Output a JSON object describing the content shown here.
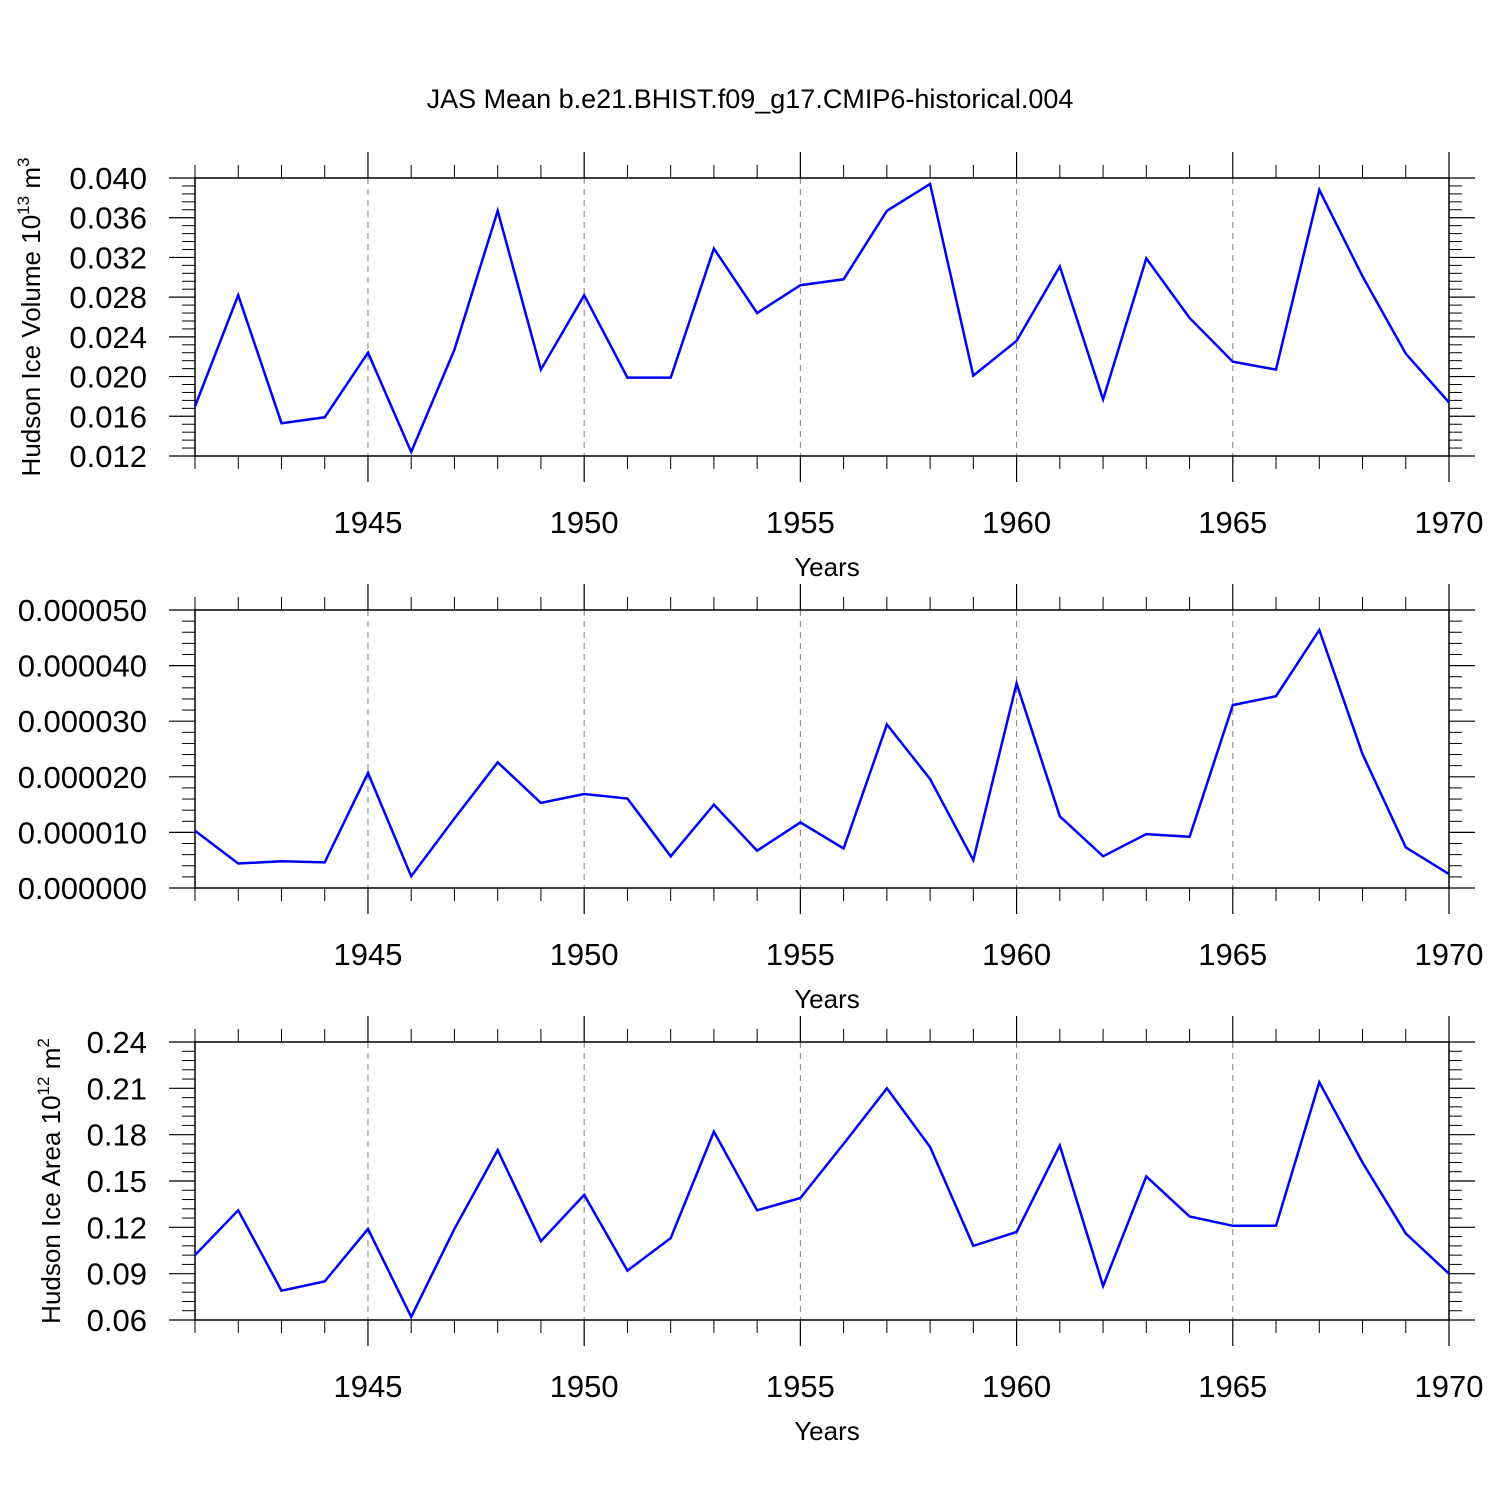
{
  "title": "JAS Mean b.e21.BHIST.f09_g17.CMIP6-historical.004",
  "colors": {
    "line": "#0000ff",
    "axis": "#000000",
    "grid": "#808080",
    "background": "#ffffff"
  },
  "chart_data": [
    {
      "type": "line",
      "name": "ice-volume",
      "ylabel": {
        "main": "Hudson Ice Volume 10",
        "sup": "13",
        "mid": " m",
        "sup2": "3"
      },
      "xlabel": "Years",
      "xlim": [
        1941,
        1970
      ],
      "ylim": [
        0.012,
        0.04
      ],
      "xticks": [
        1945,
        1950,
        1955,
        1960,
        1965,
        1970
      ],
      "xtick_labels": [
        "1945",
        "1950",
        "1955",
        "1960",
        "1965",
        "1970"
      ],
      "yticks": [
        0.012,
        0.016,
        0.02,
        0.024,
        0.028,
        0.032,
        0.036,
        0.04
      ],
      "ytick_labels": [
        "0.012",
        "0.016",
        "0.020",
        "0.024",
        "0.028",
        "0.032",
        "0.036",
        "0.040"
      ],
      "grid": "x-dashed",
      "x": [
        1941,
        1942,
        1943,
        1944,
        1945,
        1946,
        1947,
        1948,
        1949,
        1950,
        1951,
        1952,
        1953,
        1954,
        1955,
        1956,
        1957,
        1958,
        1959,
        1960,
        1961,
        1962,
        1963,
        1964,
        1965,
        1966,
        1967,
        1968,
        1969,
        1970
      ],
      "values": [
        0.017,
        0.0282,
        0.0153,
        0.0159,
        0.0224,
        0.0124,
        0.0227,
        0.0367,
        0.0207,
        0.0282,
        0.0199,
        0.0199,
        0.0329,
        0.0264,
        0.0292,
        0.0298,
        0.0367,
        0.0394,
        0.0201,
        0.0236,
        0.0311,
        0.0177,
        0.0319,
        0.0259,
        0.0215,
        0.0207,
        0.0388,
        0.0301,
        0.0223,
        0.0174
      ]
    },
    {
      "type": "line",
      "name": "second-panel",
      "ylabel": null,
      "xlabel": "Years",
      "xlim": [
        1941,
        1970
      ],
      "ylim": [
        0.0,
        5e-05
      ],
      "xticks": [
        1945,
        1950,
        1955,
        1960,
        1965,
        1970
      ],
      "xtick_labels": [
        "1945",
        "1950",
        "1955",
        "1960",
        "1965",
        "1970"
      ],
      "yticks": [
        0.0,
        1e-05,
        2e-05,
        3e-05,
        4e-05,
        5e-05
      ],
      "ytick_labels": [
        "0.000000",
        "0.000010",
        "0.000020",
        "0.000030",
        "0.000040",
        "0.000050"
      ],
      "grid": "x-dashed",
      "x": [
        1941,
        1942,
        1943,
        1944,
        1945,
        1946,
        1947,
        1948,
        1949,
        1950,
        1951,
        1952,
        1953,
        1954,
        1955,
        1956,
        1957,
        1958,
        1959,
        1960,
        1961,
        1962,
        1963,
        1964,
        1965,
        1966,
        1967,
        1968,
        1969,
        1970
      ],
      "values": [
        1.03e-05,
        4.4e-06,
        4.8e-06,
        4.6e-06,
        2.07e-05,
        2.1e-06,
        1.25e-05,
        2.26e-05,
        1.53e-05,
        1.69e-05,
        1.61e-05,
        5.7e-06,
        1.5e-05,
        6.7e-06,
        1.18e-05,
        7.1e-06,
        2.94e-05,
        1.96e-05,
        5e-06,
        3.68e-05,
        1.29e-05,
        5.7e-06,
        9.7e-06,
        9.2e-06,
        3.29e-05,
        3.45e-05,
        4.64e-05,
        2.41e-05,
        7.3e-06,
        2.5e-06
      ]
    },
    {
      "type": "line",
      "name": "ice-area",
      "ylabel": {
        "main": "Hudson Ice Area 10",
        "sup": "12",
        "mid": " m",
        "sup2": "2"
      },
      "xlabel": "Years",
      "xlim": [
        1941,
        1970
      ],
      "ylim": [
        0.06,
        0.24
      ],
      "xticks": [
        1945,
        1950,
        1955,
        1960,
        1965,
        1970
      ],
      "xtick_labels": [
        "1945",
        "1950",
        "1955",
        "1960",
        "1965",
        "1970"
      ],
      "yticks": [
        0.06,
        0.09,
        0.12,
        0.15,
        0.18,
        0.21,
        0.24
      ],
      "ytick_labels": [
        "0.06",
        "0.09",
        "0.12",
        "0.15",
        "0.18",
        "0.21",
        "0.24"
      ],
      "grid": "x-dashed",
      "x": [
        1941,
        1942,
        1943,
        1944,
        1945,
        1946,
        1947,
        1948,
        1949,
        1950,
        1951,
        1952,
        1953,
        1954,
        1955,
        1956,
        1957,
        1958,
        1959,
        1960,
        1961,
        1962,
        1963,
        1964,
        1965,
        1966,
        1967,
        1968,
        1969,
        1970
      ],
      "values": [
        0.102,
        0.131,
        0.079,
        0.085,
        0.119,
        0.062,
        0.119,
        0.17,
        0.111,
        0.141,
        0.092,
        0.113,
        0.182,
        0.131,
        0.139,
        0.174,
        0.21,
        0.172,
        0.108,
        0.117,
        0.173,
        0.082,
        0.153,
        0.127,
        0.121,
        0.121,
        0.214,
        0.162,
        0.116,
        0.09
      ]
    }
  ]
}
